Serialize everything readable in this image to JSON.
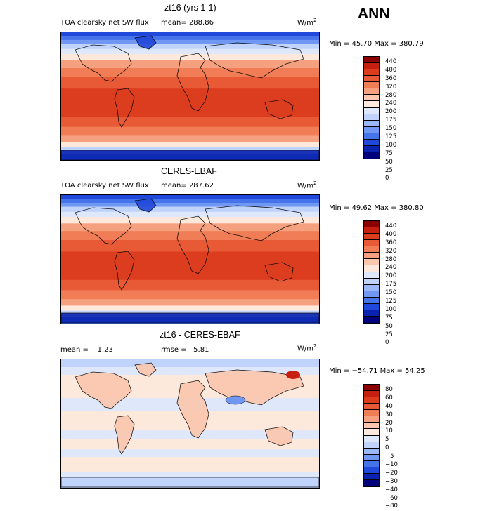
{
  "page": {
    "season": "ANN"
  },
  "chart_data": [
    {
      "type": "heatmap",
      "title": "zt16 (yrs 1-1)",
      "subtitle": "TOA clearsky net SW flux",
      "mean_label": "mean=",
      "mean": "288.86",
      "units_base": "W/m",
      "units_exp": "2",
      "stats_text": "Min =  45.70 Max = 380.79",
      "min": 45.7,
      "max": 380.79,
      "levels": [
        "440",
        "400",
        "360",
        "320",
        "280",
        "240",
        "200",
        "175",
        "150",
        "125",
        "100",
        "75",
        "50",
        "25",
        "0"
      ],
      "colors": [
        "#8a0000",
        "#c82010",
        "#dc3d1e",
        "#e85a35",
        "#f07d55",
        "#f5a07e",
        "#fbc6ae",
        "#fde8dc",
        "#dfe8fa",
        "#bfd3fb",
        "#9ab8f8",
        "#7098f2",
        "#4574ea",
        "#2048da",
        "#0a22b0",
        "#00007a"
      ]
    },
    {
      "type": "heatmap",
      "title": "CERES-EBAF",
      "subtitle": "TOA clearsky net SW flux",
      "mean_label": "mean=",
      "mean": "287.62",
      "units_base": "W/m",
      "units_exp": "2",
      "stats_text": "Min =  49.62 Max = 380.80",
      "min": 49.62,
      "max": 380.8,
      "levels": [
        "440",
        "400",
        "360",
        "320",
        "280",
        "240",
        "200",
        "175",
        "150",
        "125",
        "100",
        "75",
        "50",
        "25",
        "0"
      ],
      "colors": [
        "#8a0000",
        "#c82010",
        "#dc3d1e",
        "#e85a35",
        "#f07d55",
        "#f5a07e",
        "#fbc6ae",
        "#fde8dc",
        "#dfe8fa",
        "#bfd3fb",
        "#9ab8f8",
        "#7098f2",
        "#4574ea",
        "#2048da",
        "#0a22b0",
        "#00007a"
      ]
    },
    {
      "type": "heatmap",
      "title": "zt16 - CERES-EBAF",
      "mean_label": "mean =",
      "mean": "1.23",
      "rmse_label": "rmse =",
      "rmse": "5.81",
      "units_base": "W/m",
      "units_exp": "2",
      "stats_text": "Min = −54.71 Max =   54.25",
      "min": -54.71,
      "max": 54.25,
      "levels": [
        "80",
        "60",
        "40",
        "30",
        "20",
        "10",
        "5",
        "0",
        "−5",
        "−10",
        "−20",
        "−30",
        "−40",
        "−60",
        "−80"
      ],
      "colors": [
        "#8a0000",
        "#c82010",
        "#dc3d1e",
        "#e85a35",
        "#f07d55",
        "#f5a07e",
        "#fbc6ae",
        "#fde8dc",
        "#dfe8fa",
        "#bfd3fb",
        "#9ab8f8",
        "#7098f2",
        "#4574ea",
        "#2048da",
        "#0a22b0",
        "#00007a"
      ]
    }
  ]
}
